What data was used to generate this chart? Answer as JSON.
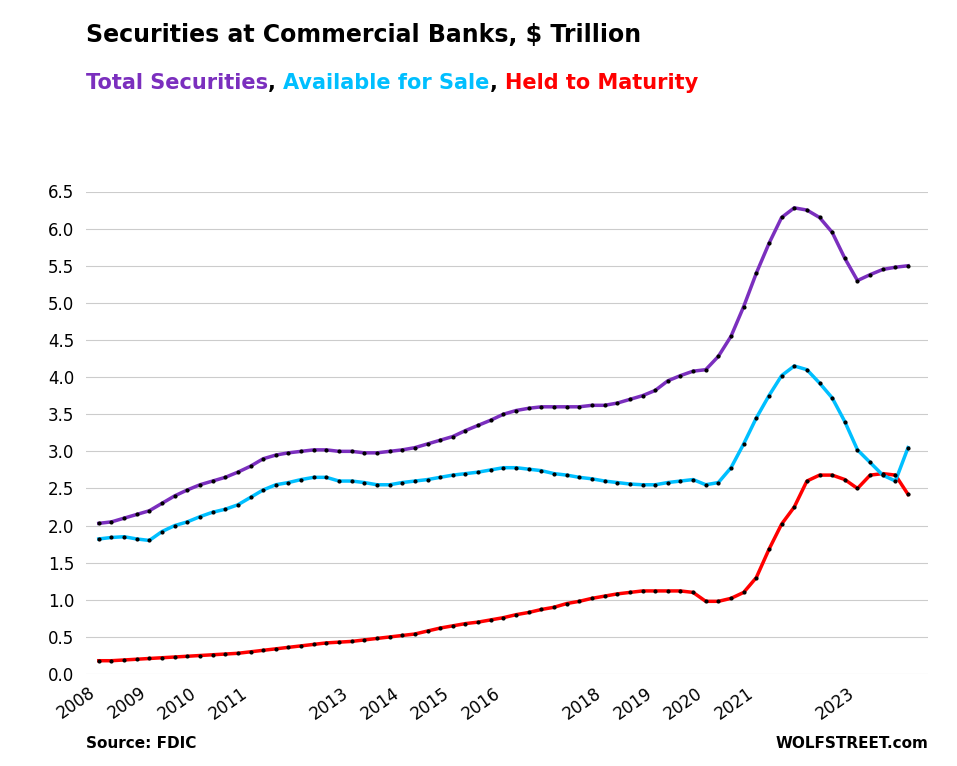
{
  "title": "Securities at Commercial Banks, $ Trillion",
  "subtitle_parts": [
    {
      "text": "Total Securities",
      "color": "#7B2FBE"
    },
    {
      "text": ", ",
      "color": "#000000"
    },
    {
      "text": "Available for Sale",
      "color": "#00BFFF"
    },
    {
      "text": ", ",
      "color": "#000000"
    },
    {
      "text": "Held to Maturity",
      "color": "#FF0000"
    }
  ],
  "source_left": "Source: FDIC",
  "source_right": "WOLFSTREET.com",
  "ylim": [
    0.0,
    6.5
  ],
  "yticks": [
    0.0,
    0.5,
    1.0,
    1.5,
    2.0,
    2.5,
    3.0,
    3.5,
    4.0,
    4.5,
    5.0,
    5.5,
    6.0,
    6.5
  ],
  "background_color": "#FFFFFF",
  "grid_color": "#CCCCCC",
  "total_color": "#7B2FBE",
  "afs_color": "#00BFFF",
  "htm_color": "#FF0000",
  "dot_color": "#000000",
  "years_quarterly": [
    2008.0,
    2008.25,
    2008.5,
    2008.75,
    2009.0,
    2009.25,
    2009.5,
    2009.75,
    2010.0,
    2010.25,
    2010.5,
    2010.75,
    2011.0,
    2011.25,
    2011.5,
    2011.75,
    2012.0,
    2012.25,
    2012.5,
    2012.75,
    2013.0,
    2013.25,
    2013.5,
    2013.75,
    2014.0,
    2014.25,
    2014.5,
    2014.75,
    2015.0,
    2015.25,
    2015.5,
    2015.75,
    2016.0,
    2016.25,
    2016.5,
    2016.75,
    2017.0,
    2017.25,
    2017.5,
    2017.75,
    2018.0,
    2018.25,
    2018.5,
    2018.75,
    2019.0,
    2019.25,
    2019.5,
    2019.75,
    2020.0,
    2020.25,
    2020.5,
    2020.75,
    2021.0,
    2021.25,
    2021.5,
    2021.75,
    2022.0,
    2022.25,
    2022.5,
    2022.75,
    2023.0,
    2023.25,
    2023.5,
    2023.75,
    2024.0
  ],
  "total": [
    2.03,
    2.05,
    2.1,
    2.15,
    2.2,
    2.3,
    2.4,
    2.48,
    2.55,
    2.6,
    2.65,
    2.72,
    2.8,
    2.9,
    2.95,
    2.98,
    3.0,
    3.02,
    3.02,
    3.0,
    3.0,
    2.98,
    2.98,
    3.0,
    3.02,
    3.05,
    3.1,
    3.15,
    3.2,
    3.28,
    3.35,
    3.42,
    3.5,
    3.55,
    3.58,
    3.6,
    3.6,
    3.6,
    3.6,
    3.62,
    3.62,
    3.65,
    3.7,
    3.75,
    3.82,
    3.95,
    4.02,
    4.08,
    4.1,
    4.28,
    4.55,
    4.95,
    5.4,
    5.8,
    6.15,
    6.28,
    6.25,
    6.15,
    5.95,
    5.6,
    5.3,
    5.38,
    5.45,
    5.48,
    5.5
  ],
  "afs": [
    1.82,
    1.84,
    1.85,
    1.82,
    1.8,
    1.92,
    2.0,
    2.05,
    2.12,
    2.18,
    2.22,
    2.28,
    2.38,
    2.48,
    2.55,
    2.58,
    2.62,
    2.65,
    2.65,
    2.6,
    2.6,
    2.58,
    2.55,
    2.55,
    2.58,
    2.6,
    2.62,
    2.65,
    2.68,
    2.7,
    2.72,
    2.75,
    2.78,
    2.78,
    2.76,
    2.74,
    2.7,
    2.68,
    2.65,
    2.63,
    2.6,
    2.58,
    2.56,
    2.55,
    2.55,
    2.58,
    2.6,
    2.62,
    2.55,
    2.58,
    2.78,
    3.1,
    3.45,
    3.75,
    4.02,
    4.15,
    4.1,
    3.92,
    3.72,
    3.4,
    3.02,
    2.85,
    2.68,
    2.6,
    3.05
  ],
  "htm": [
    0.18,
    0.18,
    0.19,
    0.2,
    0.21,
    0.22,
    0.23,
    0.24,
    0.25,
    0.26,
    0.27,
    0.28,
    0.3,
    0.32,
    0.34,
    0.36,
    0.38,
    0.4,
    0.42,
    0.43,
    0.44,
    0.46,
    0.48,
    0.5,
    0.52,
    0.54,
    0.58,
    0.62,
    0.65,
    0.68,
    0.7,
    0.73,
    0.76,
    0.8,
    0.83,
    0.87,
    0.9,
    0.95,
    0.98,
    1.02,
    1.05,
    1.08,
    1.1,
    1.12,
    1.12,
    1.12,
    1.12,
    1.1,
    0.98,
    0.98,
    1.02,
    1.1,
    1.3,
    1.68,
    2.02,
    2.25,
    2.6,
    2.68,
    2.68,
    2.62,
    2.5,
    2.68,
    2.7,
    2.68,
    2.42
  ],
  "xtick_years": [
    2008,
    2009,
    2010,
    2011,
    2013,
    2014,
    2015,
    2016,
    2018,
    2019,
    2020,
    2021,
    2023
  ],
  "line_width": 2.5,
  "dot_size": 4,
  "title_fontsize": 17,
  "subtitle_fontsize": 15,
  "tick_fontsize": 12,
  "source_fontsize": 11
}
